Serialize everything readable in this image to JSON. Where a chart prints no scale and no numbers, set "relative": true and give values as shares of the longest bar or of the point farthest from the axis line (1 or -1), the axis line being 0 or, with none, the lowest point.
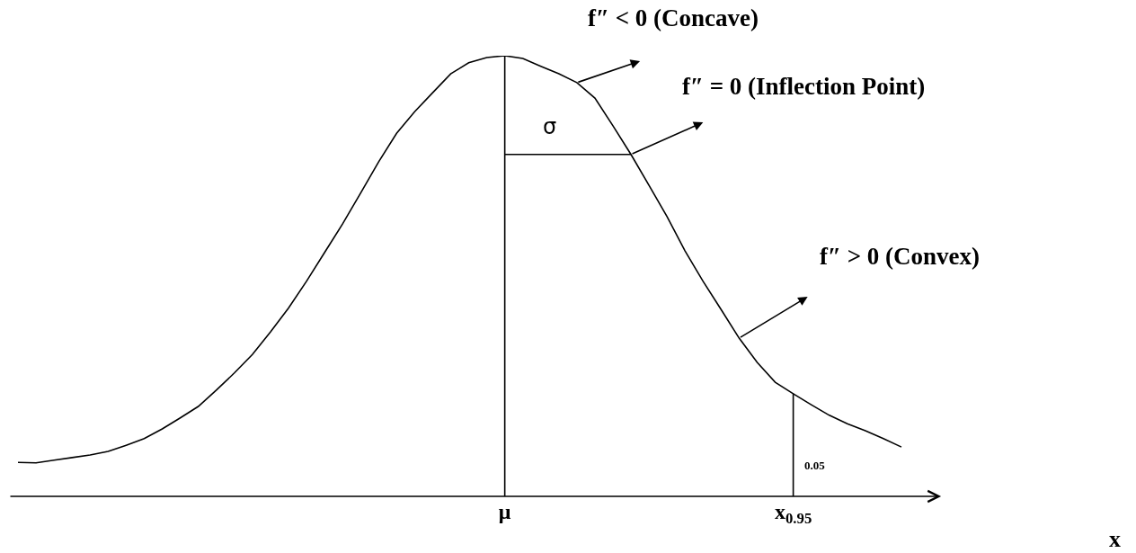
{
  "chart_data": {
    "type": "line",
    "relative": true,
    "categories": [
      null,
      null,
      null,
      null,
      null,
      null,
      null,
      null,
      null,
      null,
      null,
      null,
      null,
      null,
      null,
      null,
      null,
      null,
      null,
      null,
      null,
      null,
      null,
      null,
      null,
      null,
      null,
      "μ",
      null,
      null,
      null,
      null,
      null,
      null,
      null,
      null,
      null,
      null,
      null,
      null,
      null,
      null,
      null,
      "x$_{0.95}$",
      null,
      null,
      null,
      null,
      null,
      null
    ],
    "series": [
      {
        "color": "#000000",
        "values": [
          0.077,
          0.076,
          0.082,
          0.088,
          0.094,
          0.102,
          0.116,
          0.131,
          0.153,
          0.178,
          0.204,
          0.241,
          0.28,
          0.322,
          0.373,
          0.427,
          0.488,
          0.553,
          0.618,
          0.688,
          0.759,
          0.824,
          0.873,
          0.916,
          0.959,
          0.984,
          0.996,
          1,
          0.994,
          0.976,
          0.959,
          0.939,
          0.904,
          0.841,
          0.776,
          0.706,
          0.635,
          0.557,
          0.488,
          0.424,
          0.359,
          0.304,
          0.259,
          0.233,
          0.208,
          0.184,
          0.165,
          0.149,
          0.131,
          0.112
        ]
      },
      {
        "color": "#000000",
        "values": [
          null,
          null,
          null,
          null,
          null,
          null,
          null,
          null,
          null,
          null,
          null,
          null,
          null,
          null,
          null,
          null,
          null,
          null,
          null,
          null,
          null,
          null,
          null,
          null,
          null,
          null,
          null,
          0.776,
          0.776,
          0.776,
          0.776,
          0.776,
          0.776,
          0.776,
          0.776,
          null,
          null,
          null,
          null,
          null,
          null,
          null,
          null,
          null,
          null,
          null,
          null,
          null,
          null,
          null
        ]
      }
    ],
    "ref_lines": [
      {
        "axis": "x",
        "value": "μ",
        "color": "#000000"
      },
      {
        "axis": "x",
        "value": "x$_{0.95}$",
        "color": "#000000"
      }
    ],
    "annotations": [
      "f″ < 0 (Concave)",
      "f″ = 0 (Inflection Point)",
      "f″ > 0 (Convex)",
      "σ",
      "0.05",
      "x"
    ],
    "marker": "none",
    "line_style": "solid"
  }
}
